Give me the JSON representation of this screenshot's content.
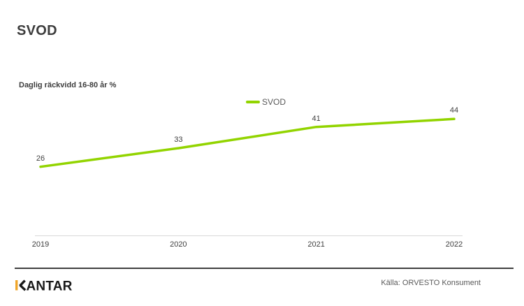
{
  "header": {
    "title": "SVOD"
  },
  "chart_data": {
    "type": "line",
    "title": "SVOD",
    "subtitle": "Daglig räckvidd 16-80 år %",
    "categories": [
      "2019",
      "2020",
      "2021",
      "2022"
    ],
    "series": [
      {
        "name": "SVOD",
        "values": [
          26,
          33,
          41,
          44
        ],
        "color": "#92d400"
      }
    ],
    "ylim": [
      0,
      50
    ],
    "grid": false,
    "data_labels": true,
    "legend_position": "top-center",
    "axis_line_color": "#d9d9d9"
  },
  "footer": {
    "brand": "KANTAR",
    "brand_accent_color": "#f0a62a",
    "brand_text_color": "#1a1a1a",
    "source": "Källa: ORVESTO Konsument"
  },
  "colors": {
    "accent_green": "#92d400",
    "text_dark": "#3d3d3d",
    "text_gray": "#595959",
    "axis_line": "#d9d9d9",
    "footer_line": "#3f3f3f"
  }
}
